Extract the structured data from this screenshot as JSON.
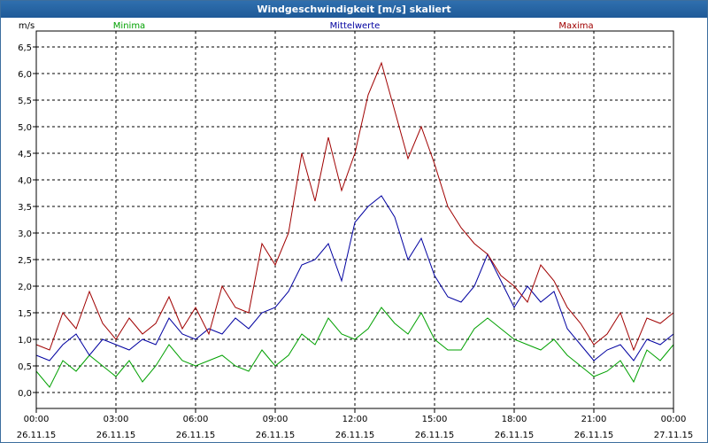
{
  "window": {
    "title": "Windgeschwindigkeit [m/s] skaliert"
  },
  "colors": {
    "minima": "#00a000",
    "mittelwerte": "#0000a0",
    "maxima": "#a00000",
    "grid": "#000000"
  },
  "chart_data": {
    "type": "line",
    "title": "Windgeschwindigkeit [m/s] skaliert",
    "ylabel": "m/s",
    "ylim": [
      -0.3,
      6.8
    ],
    "yticks": [
      "0,0",
      "0,5",
      "1,0",
      "1,5",
      "2,0",
      "2,5",
      "3,0",
      "3,5",
      "4,0",
      "4,5",
      "5,0",
      "5,5",
      "6,0",
      "6,5"
    ],
    "ytick_values": [
      0,
      0.5,
      1,
      1.5,
      2,
      2.5,
      3,
      3.5,
      4,
      4.5,
      5,
      5.5,
      6,
      6.5
    ],
    "xlim_hours": [
      0,
      24
    ],
    "xticks": [
      {
        "time": "00:00",
        "date": "26.11.15"
      },
      {
        "time": "03:00",
        "date": "26.11.15"
      },
      {
        "time": "06:00",
        "date": "26.11.15"
      },
      {
        "time": "09:00",
        "date": "26.11.15"
      },
      {
        "time": "12:00",
        "date": "26.11.15"
      },
      {
        "time": "15:00",
        "date": "26.11.15"
      },
      {
        "time": "18:00",
        "date": "26.11.15"
      },
      {
        "time": "21:00",
        "date": "26.11.15"
      },
      {
        "time": "00:00",
        "date": "27.11.15"
      }
    ],
    "series": [
      {
        "name": "Minima",
        "color": "#00a000",
        "legend_pos": "top-left",
        "x": [
          0,
          0.5,
          1,
          1.5,
          2,
          2.5,
          3,
          3.5,
          4,
          4.5,
          5,
          5.5,
          6,
          6.5,
          7,
          7.5,
          8,
          8.5,
          9,
          9.5,
          10,
          10.5,
          11,
          11.5,
          12,
          12.5,
          13,
          13.5,
          14,
          14.5,
          15,
          15.5,
          16,
          16.5,
          17,
          17.5,
          18,
          18.5,
          19,
          19.5,
          20,
          20.5,
          21,
          21.5,
          22,
          22.5,
          23,
          23.5,
          24
        ],
        "values": [
          0.4,
          0.1,
          0.6,
          0.4,
          0.7,
          0.5,
          0.3,
          0.6,
          0.2,
          0.5,
          0.9,
          0.6,
          0.5,
          0.6,
          0.7,
          0.5,
          0.4,
          0.8,
          0.5,
          0.7,
          1.1,
          0.9,
          1.4,
          1.1,
          1.0,
          1.2,
          1.6,
          1.3,
          1.1,
          1.5,
          1.0,
          0.8,
          0.8,
          1.2,
          1.4,
          1.2,
          1.0,
          0.9,
          0.8,
          1.0,
          0.7,
          0.5,
          0.3,
          0.4,
          0.6,
          0.2,
          0.8,
          0.6,
          0.9
        ]
      },
      {
        "name": "Mittelwerte",
        "color": "#0000a0",
        "legend_pos": "top-center",
        "x": [
          0,
          0.5,
          1,
          1.5,
          2,
          2.5,
          3,
          3.5,
          4,
          4.5,
          5,
          5.5,
          6,
          6.5,
          7,
          7.5,
          8,
          8.5,
          9,
          9.5,
          10,
          10.5,
          11,
          11.5,
          12,
          12.5,
          13,
          13.5,
          14,
          14.5,
          15,
          15.5,
          16,
          16.5,
          17,
          17.5,
          18,
          18.5,
          19,
          19.5,
          20,
          20.5,
          21,
          21.5,
          22,
          22.5,
          23,
          23.5,
          24
        ],
        "values": [
          0.7,
          0.6,
          0.9,
          1.1,
          0.7,
          1.0,
          0.9,
          0.8,
          1.0,
          0.9,
          1.4,
          1.1,
          1.0,
          1.2,
          1.1,
          1.4,
          1.2,
          1.5,
          1.6,
          1.9,
          2.4,
          2.5,
          2.8,
          2.1,
          3.2,
          3.5,
          3.7,
          3.3,
          2.5,
          2.9,
          2.2,
          1.8,
          1.7,
          2.0,
          2.6,
          2.1,
          1.6,
          2.0,
          1.7,
          1.9,
          1.2,
          0.9,
          0.6,
          0.8,
          0.9,
          0.6,
          1.0,
          0.9,
          1.1
        ]
      },
      {
        "name": "Maxima",
        "color": "#a00000",
        "legend_pos": "top-right",
        "x": [
          0,
          0.5,
          1,
          1.5,
          2,
          2.5,
          3,
          3.5,
          4,
          4.5,
          5,
          5.5,
          6,
          6.5,
          7,
          7.5,
          8,
          8.5,
          9,
          9.5,
          10,
          10.5,
          11,
          11.5,
          12,
          12.5,
          13,
          13.5,
          14,
          14.5,
          15,
          15.5,
          16,
          16.5,
          17,
          17.5,
          18,
          18.5,
          19,
          19.5,
          20,
          20.5,
          21,
          21.5,
          22,
          22.5,
          23,
          23.5,
          24
        ],
        "values": [
          0.9,
          0.8,
          1.5,
          1.2,
          1.9,
          1.3,
          1.0,
          1.4,
          1.1,
          1.3,
          1.8,
          1.2,
          1.6,
          1.1,
          2.0,
          1.6,
          1.5,
          2.8,
          2.4,
          3.0,
          4.5,
          3.6,
          4.8,
          3.8,
          4.5,
          5.6,
          6.2,
          5.3,
          4.4,
          5.0,
          4.3,
          3.5,
          3.1,
          2.8,
          2.6,
          2.2,
          2.0,
          1.7,
          2.4,
          2.1,
          1.6,
          1.3,
          0.9,
          1.1,
          1.5,
          0.8,
          1.4,
          1.3,
          1.5
        ]
      }
    ]
  }
}
